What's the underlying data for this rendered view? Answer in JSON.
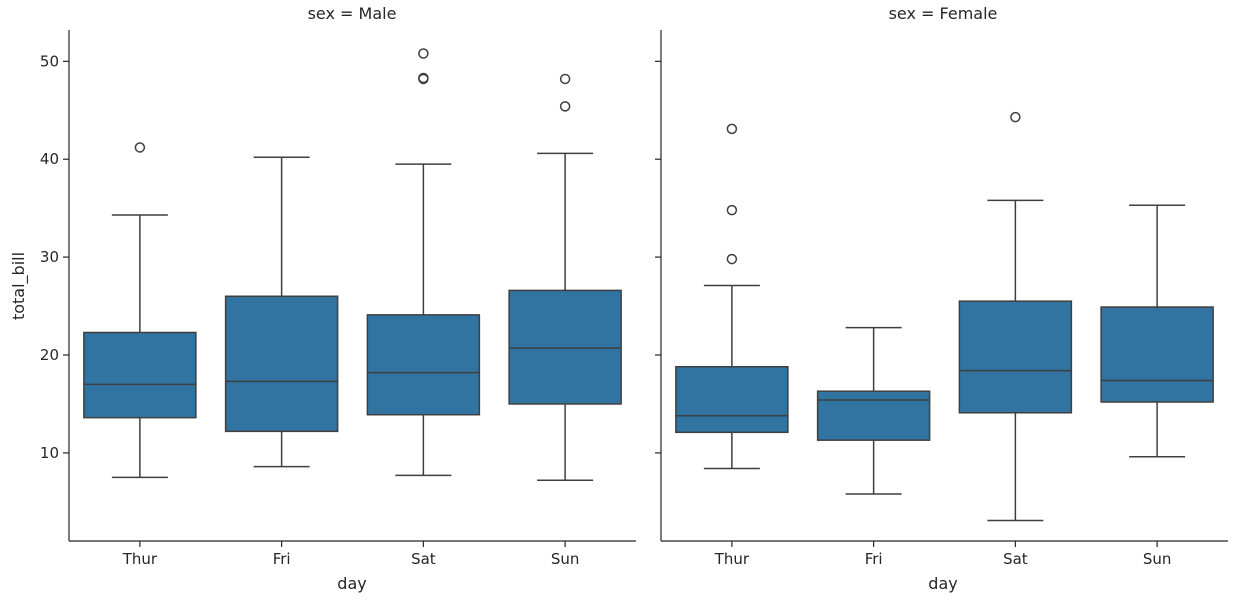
{
  "chart_data": {
    "type": "box",
    "xlabel": "day",
    "ylabel": "total_bill",
    "ylim": [
      1,
      53.2
    ],
    "yticks": [
      10,
      20,
      30,
      40,
      50
    ],
    "categories": [
      "Thur",
      "Fri",
      "Sat",
      "Sun"
    ],
    "box_color": "#3274a1",
    "line_color": "#3f3f3f",
    "facets": [
      {
        "title": "sex = Male",
        "boxes": [
          {
            "category": "Thur",
            "whisker_low": 7.5,
            "q1": 13.6,
            "median": 17.0,
            "q3": 22.3,
            "whisker_high": 34.3,
            "outliers": [
              41.2
            ]
          },
          {
            "category": "Fri",
            "whisker_low": 8.6,
            "q1": 12.2,
            "median": 17.3,
            "q3": 26.0,
            "whisker_high": 40.2,
            "outliers": []
          },
          {
            "category": "Sat",
            "whisker_low": 7.7,
            "q1": 13.9,
            "median": 18.2,
            "q3": 24.1,
            "whisker_high": 39.5,
            "outliers": [
              48.2,
              48.3,
              50.8
            ]
          },
          {
            "category": "Sun",
            "whisker_low": 7.2,
            "q1": 15.0,
            "median": 20.7,
            "q3": 26.6,
            "whisker_high": 40.6,
            "outliers": [
              45.4,
              48.2
            ]
          }
        ]
      },
      {
        "title": "sex = Female",
        "boxes": [
          {
            "category": "Thur",
            "whisker_low": 8.4,
            "q1": 12.1,
            "median": 13.8,
            "q3": 18.8,
            "whisker_high": 27.1,
            "outliers": [
              29.8,
              34.8,
              43.1
            ]
          },
          {
            "category": "Fri",
            "whisker_low": 5.8,
            "q1": 11.3,
            "median": 15.4,
            "q3": 16.3,
            "whisker_high": 22.8,
            "outliers": []
          },
          {
            "category": "Sat",
            "whisker_low": 3.1,
            "q1": 14.1,
            "median": 18.4,
            "q3": 25.5,
            "whisker_high": 35.8,
            "outliers": [
              44.3
            ]
          },
          {
            "category": "Sun",
            "whisker_low": 9.6,
            "q1": 15.2,
            "median": 17.4,
            "q3": 24.9,
            "whisker_high": 35.3,
            "outliers": []
          }
        ]
      }
    ]
  }
}
